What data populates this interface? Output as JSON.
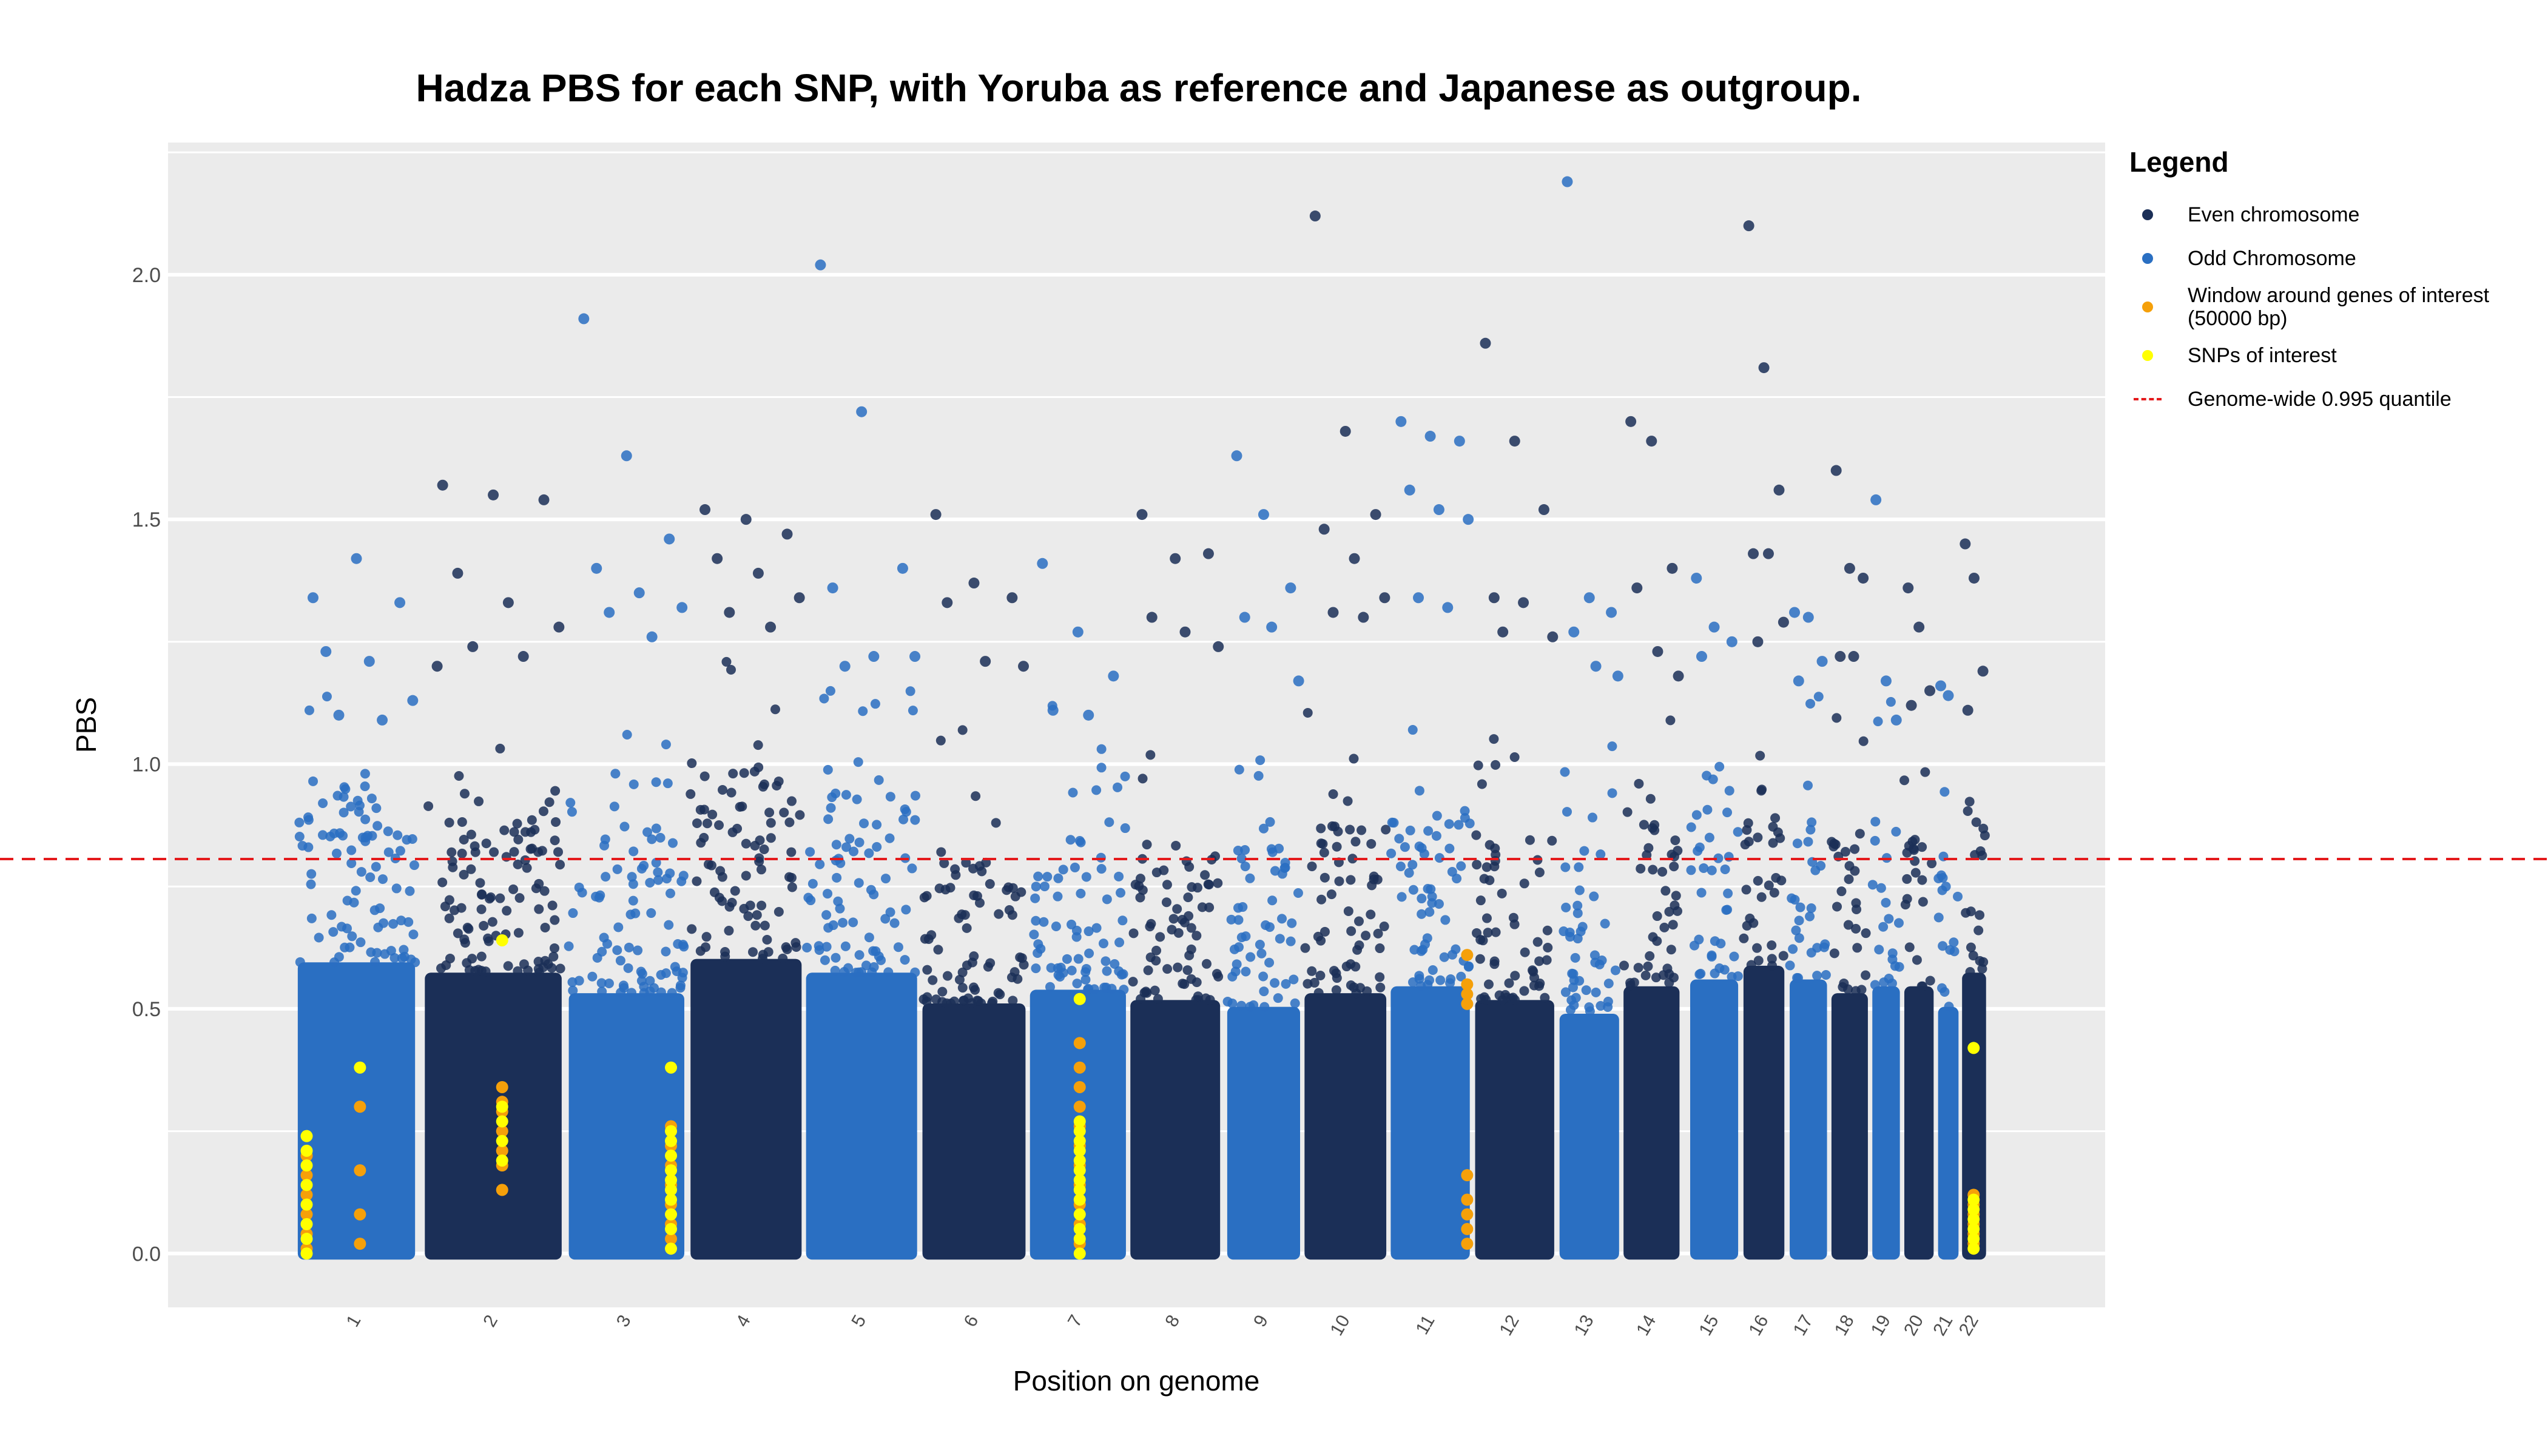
{
  "chart_data": {
    "type": "scatter",
    "title": "Hadza PBS for each SNP, with Yoruba as reference and Japanese as outgroup.",
    "xlabel": "Position on genome",
    "ylabel": "PBS",
    "ylim": [
      -0.11,
      2.27
    ],
    "yticks": [
      0.0,
      0.5,
      1.0,
      1.5,
      2.0
    ],
    "ytick_labels": [
      "0.0",
      "0.5",
      "1.0",
      "1.5",
      "2.0"
    ],
    "threshold": 0.806,
    "grid": true,
    "legend_position": "right",
    "legend": {
      "title": "Legend",
      "items": [
        {
          "label": "Even chromosome",
          "kind": "point",
          "color": "#1b2f57"
        },
        {
          "label": "Odd Chromosome",
          "kind": "point",
          "color": "#2a6fc2"
        },
        {
          "label": "Window around genes of interest (50000 bp)",
          "kind": "point",
          "color": "#f5a00a"
        },
        {
          "label": "SNPs of interest",
          "kind": "point",
          "color": "#ffff00"
        },
        {
          "label": "Genome-wide 0.995 quantile",
          "kind": "dashed-line",
          "color": "#e41a1c"
        }
      ]
    },
    "colors": {
      "even": "#1b2f57",
      "odd": "#2a6fc2",
      "window": "#f5a00a",
      "snp": "#ffff00",
      "threshold": "#e41a1c",
      "panel": "#ebebeb",
      "grid": "#ffffff"
    },
    "chromosomes": [
      {
        "label": "1",
        "start": 0.0,
        "end": 0.132,
        "bulk": 0.85,
        "peaks": [
          1.34,
          1.42,
          1.33,
          1.23,
          1.21,
          1.13,
          1.1,
          1.09
        ]
      },
      {
        "label": "2",
        "start": 0.143,
        "end": 0.297,
        "bulk": 0.82,
        "peaks": [
          1.57,
          1.55,
          1.54,
          1.39,
          1.33,
          1.28,
          1.24,
          1.22,
          1.2
        ]
      },
      {
        "label": "3",
        "start": 0.305,
        "end": 0.435,
        "bulk": 0.76,
        "peaks": [
          1.91,
          1.63,
          1.46,
          1.4,
          1.35,
          1.32,
          1.31,
          1.26
        ]
      },
      {
        "label": "4",
        "start": 0.442,
        "end": 0.567,
        "bulk": 0.86,
        "peaks": [
          1.52,
          1.5,
          1.47,
          1.42,
          1.39,
          1.34,
          1.31,
          1.28
        ]
      },
      {
        "label": "5",
        "start": 0.572,
        "end": 0.697,
        "bulk": 0.82,
        "peaks": [
          2.02,
          1.72,
          1.4,
          1.36,
          1.22,
          1.22,
          1.2
        ]
      },
      {
        "label": "6",
        "start": 0.703,
        "end": 0.819,
        "bulk": 0.73,
        "peaks": [
          1.51,
          1.37,
          1.34,
          1.33,
          1.21,
          1.2
        ]
      },
      {
        "label": "7",
        "start": 0.824,
        "end": 0.932,
        "bulk": 0.77,
        "peaks": [
          1.41,
          1.27,
          1.18,
          1.11,
          1.1
        ]
      },
      {
        "label": "8",
        "start": 0.937,
        "end": 1.038,
        "bulk": 0.74,
        "peaks": [
          1.51,
          1.42,
          1.43,
          1.3,
          1.27,
          1.24
        ]
      },
      {
        "label": "9",
        "start": 1.046,
        "end": 1.128,
        "bulk": 0.72,
        "peaks": [
          1.63,
          1.51,
          1.36,
          1.3,
          1.28,
          1.17
        ]
      },
      {
        "label": "10",
        "start": 1.133,
        "end": 1.225,
        "bulk": 0.76,
        "peaks": [
          2.12,
          1.68,
          1.51,
          1.48,
          1.42,
          1.34,
          1.31,
          1.3
        ]
      },
      {
        "label": "11",
        "start": 1.23,
        "end": 1.319,
        "bulk": 0.78,
        "peaks": [
          1.7,
          1.67,
          1.66,
          1.56,
          1.52,
          1.5,
          1.34,
          1.32
        ]
      },
      {
        "label": "12",
        "start": 1.325,
        "end": 1.414,
        "bulk": 0.74,
        "peaks": [
          1.86,
          1.66,
          1.52,
          1.34,
          1.33,
          1.26,
          1.27
        ]
      },
      {
        "label": "13",
        "start": 1.42,
        "end": 1.487,
        "bulk": 0.7,
        "peaks": [
          2.19,
          1.34,
          1.31,
          1.27,
          1.2,
          1.18
        ]
      },
      {
        "label": "14",
        "start": 1.492,
        "end": 1.555,
        "bulk": 0.78,
        "peaks": [
          1.7,
          1.66,
          1.4,
          1.36,
          1.23,
          1.18
        ]
      },
      {
        "label": "15",
        "start": 1.567,
        "end": 1.621,
        "bulk": 0.8,
        "peaks": [
          1.38,
          1.28,
          1.25,
          1.22
        ]
      },
      {
        "label": "16",
        "start": 1.627,
        "end": 1.673,
        "bulk": 0.84,
        "peaks": [
          2.1,
          1.81,
          1.56,
          1.43,
          1.43,
          1.29,
          1.25
        ]
      },
      {
        "label": "17",
        "start": 1.679,
        "end": 1.721,
        "bulk": 0.8,
        "peaks": [
          1.31,
          1.3,
          1.21,
          1.17
        ]
      },
      {
        "label": "18",
        "start": 1.726,
        "end": 1.767,
        "bulk": 0.76,
        "peaks": [
          1.6,
          1.4,
          1.38,
          1.22,
          1.22
        ]
      },
      {
        "label": "19",
        "start": 1.772,
        "end": 1.803,
        "bulk": 0.78,
        "peaks": [
          1.54,
          1.17,
          1.09
        ]
      },
      {
        "label": "20",
        "start": 1.808,
        "end": 1.841,
        "bulk": 0.78,
        "peaks": [
          1.36,
          1.28,
          1.15,
          1.12
        ]
      },
      {
        "label": "21",
        "start": 1.846,
        "end": 1.869,
        "bulk": 0.72,
        "peaks": [
          1.16,
          1.14
        ]
      },
      {
        "label": "22",
        "start": 1.873,
        "end": 1.9,
        "bulk": 0.82,
        "peaks": [
          1.45,
          1.38,
          1.19,
          1.11
        ]
      }
    ],
    "window_points": [
      [
        0.01,
        0.01
      ],
      [
        0.01,
        0.04
      ],
      [
        0.01,
        0.08
      ],
      [
        0.01,
        0.12
      ],
      [
        0.01,
        0.16
      ],
      [
        0.01,
        0.2
      ],
      [
        0.07,
        0.02
      ],
      [
        0.07,
        0.08
      ],
      [
        0.07,
        0.17
      ],
      [
        0.07,
        0.3
      ],
      [
        0.23,
        0.13
      ],
      [
        0.23,
        0.18
      ],
      [
        0.23,
        0.21
      ],
      [
        0.23,
        0.25
      ],
      [
        0.23,
        0.29
      ],
      [
        0.23,
        0.31
      ],
      [
        0.23,
        0.34
      ],
      [
        0.42,
        0.03
      ],
      [
        0.42,
        0.06
      ],
      [
        0.42,
        0.1
      ],
      [
        0.42,
        0.14
      ],
      [
        0.42,
        0.18
      ],
      [
        0.42,
        0.22
      ],
      [
        0.42,
        0.26
      ],
      [
        0.88,
        0.02
      ],
      [
        0.88,
        0.06
      ],
      [
        0.88,
        0.1
      ],
      [
        0.88,
        0.14
      ],
      [
        0.88,
        0.18
      ],
      [
        0.88,
        0.22
      ],
      [
        0.88,
        0.26
      ],
      [
        0.88,
        0.3
      ],
      [
        0.88,
        0.34
      ],
      [
        0.88,
        0.38
      ],
      [
        0.88,
        0.43
      ],
      [
        1.316,
        0.02
      ],
      [
        1.316,
        0.05
      ],
      [
        1.316,
        0.08
      ],
      [
        1.316,
        0.11
      ],
      [
        1.316,
        0.16
      ],
      [
        1.316,
        0.51
      ],
      [
        1.316,
        0.53
      ],
      [
        1.316,
        0.55
      ],
      [
        1.316,
        0.61
      ],
      [
        1.886,
        0.02
      ],
      [
        1.886,
        0.04
      ],
      [
        1.886,
        0.06
      ],
      [
        1.886,
        0.08
      ],
      [
        1.886,
        0.1
      ],
      [
        1.886,
        0.12
      ]
    ],
    "snp_points": [
      [
        0.01,
        0.0
      ],
      [
        0.01,
        0.03
      ],
      [
        0.01,
        0.06
      ],
      [
        0.01,
        0.1
      ],
      [
        0.01,
        0.14
      ],
      [
        0.01,
        0.18
      ],
      [
        0.01,
        0.21
      ],
      [
        0.01,
        0.24
      ],
      [
        0.07,
        0.38
      ],
      [
        0.23,
        0.19
      ],
      [
        0.23,
        0.23
      ],
      [
        0.23,
        0.27
      ],
      [
        0.23,
        0.3
      ],
      [
        0.23,
        0.64
      ],
      [
        0.42,
        0.01
      ],
      [
        0.42,
        0.05
      ],
      [
        0.42,
        0.08
      ],
      [
        0.42,
        0.11
      ],
      [
        0.42,
        0.13
      ],
      [
        0.42,
        0.15
      ],
      [
        0.42,
        0.17
      ],
      [
        0.42,
        0.2
      ],
      [
        0.42,
        0.23
      ],
      [
        0.42,
        0.25
      ],
      [
        0.42,
        0.38
      ],
      [
        0.88,
        0.0
      ],
      [
        0.88,
        0.03
      ],
      [
        0.88,
        0.05
      ],
      [
        0.88,
        0.08
      ],
      [
        0.88,
        0.11
      ],
      [
        0.88,
        0.13
      ],
      [
        0.88,
        0.15
      ],
      [
        0.88,
        0.17
      ],
      [
        0.88,
        0.19
      ],
      [
        0.88,
        0.21
      ],
      [
        0.88,
        0.23
      ],
      [
        0.88,
        0.25
      ],
      [
        0.88,
        0.27
      ],
      [
        0.88,
        0.52
      ],
      [
        1.886,
        0.01
      ],
      [
        1.886,
        0.03
      ],
      [
        1.886,
        0.05
      ],
      [
        1.886,
        0.07
      ],
      [
        1.886,
        0.09
      ],
      [
        1.886,
        0.11
      ],
      [
        1.886,
        0.42
      ]
    ]
  }
}
